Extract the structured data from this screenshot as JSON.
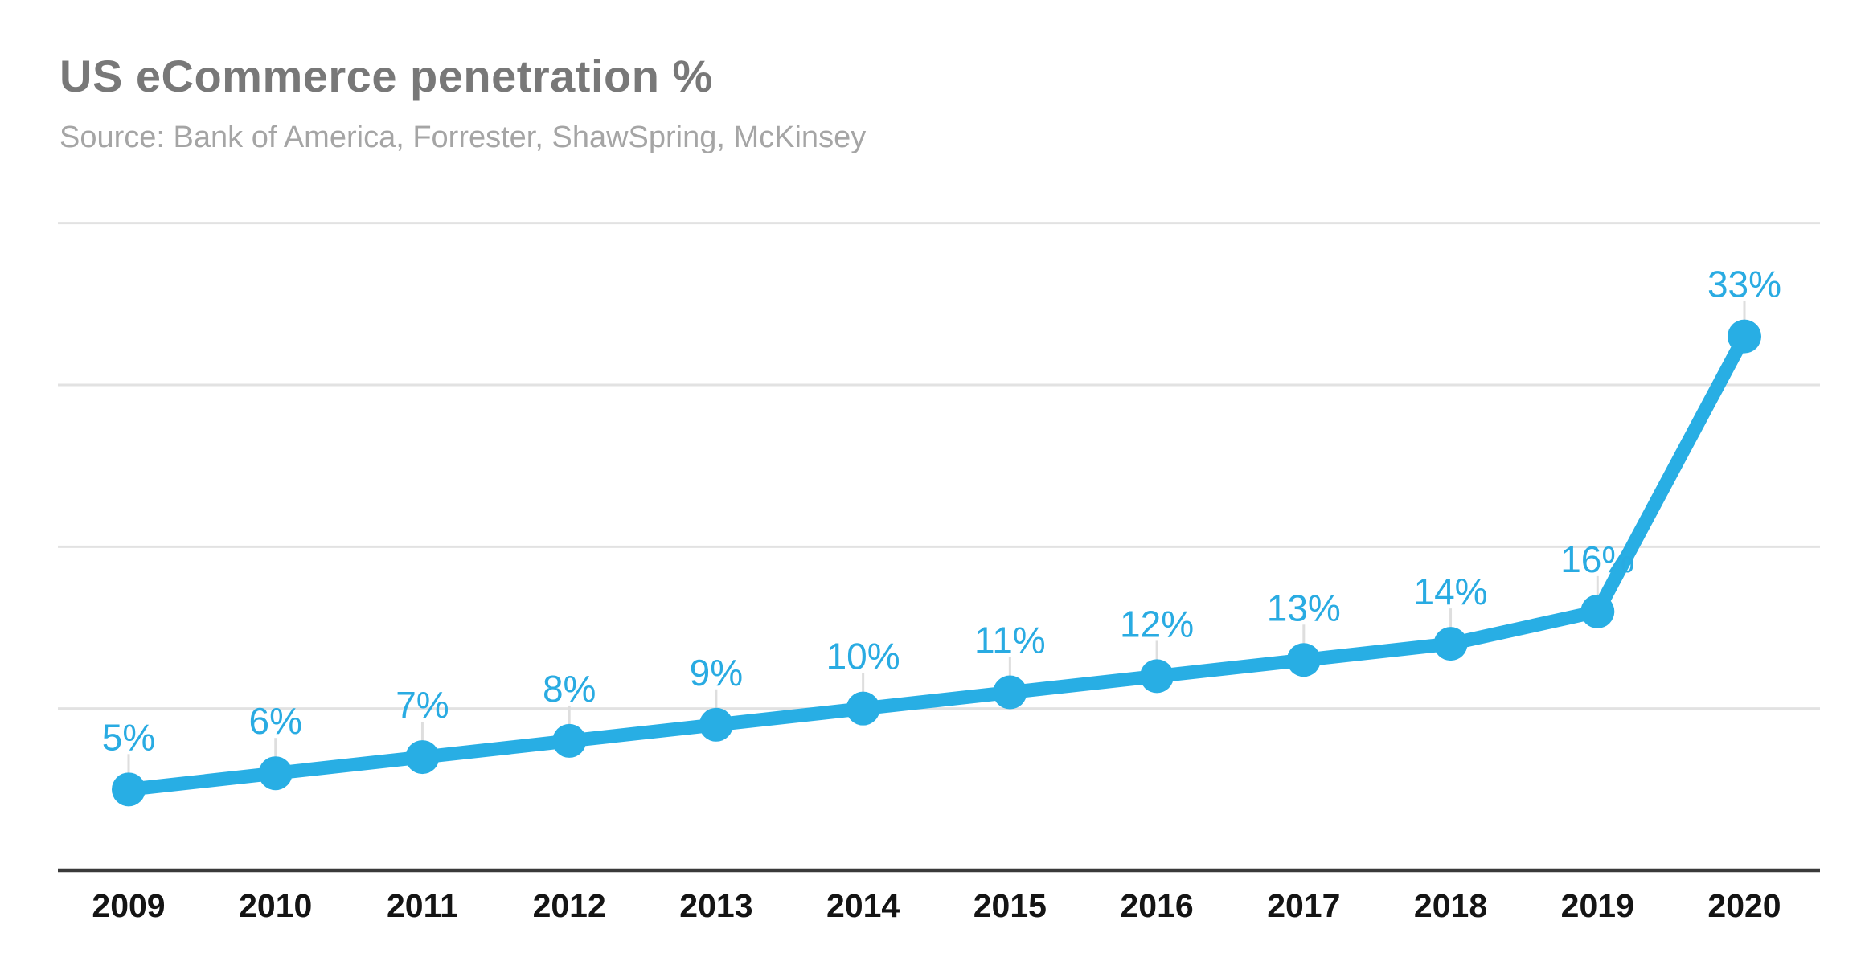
{
  "chart_data": {
    "type": "line",
    "title": "US eCommerce penetration %",
    "source": "Source: Bank of America, Forrester, ShawSpring, McKinsey",
    "categories": [
      "2009",
      "2010",
      "2011",
      "2012",
      "2013",
      "2014",
      "2015",
      "2016",
      "2017",
      "2018",
      "2019",
      "2020"
    ],
    "series": [
      {
        "name": "US eCommerce penetration %",
        "values": [
          5,
          6,
          7,
          8,
          9,
          10,
          11,
          12,
          13,
          14,
          16,
          33
        ],
        "value_labels": [
          "5%",
          "6%",
          "7%",
          "8%",
          "9%",
          "10%",
          "11%",
          "12%",
          "13%",
          "14%",
          "16%",
          "33%"
        ]
      }
    ],
    "xlabel": "",
    "ylabel": "",
    "ylim": [
      0,
      45
    ],
    "gridline_values": [
      10,
      20,
      30,
      40
    ],
    "grid": "horizontal-only",
    "y_axis_tick_labels": "none",
    "legend": "none",
    "colors": {
      "line": "#28aee4",
      "marker": "#28aee4",
      "value_label": "#29abe2",
      "grid": "#e2e2e2",
      "axis": "#3a3a3a",
      "x_tick_label": "#141414",
      "title": "#787878",
      "source": "#a5a5a5",
      "background": "#ffffff"
    }
  }
}
